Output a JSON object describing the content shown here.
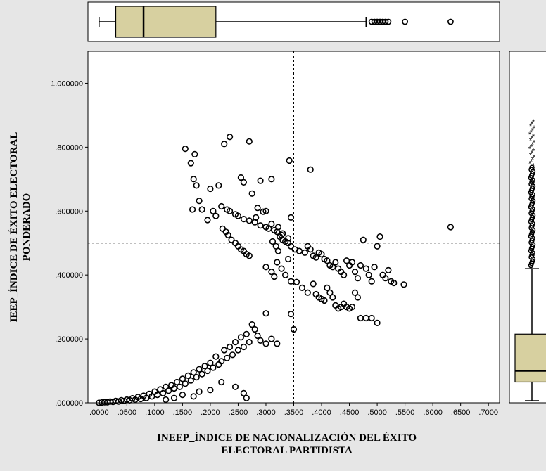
{
  "chart_data": {
    "type": "scatter",
    "title": "",
    "xlabel_lines": [
      "INEEP_ÍNDICE DE NACIONALIZACIÓN DEL ÉXITO",
      "ELECTORAL PARTIDISTA"
    ],
    "ylabel_lines": [
      "IEEP_ÍNDICE DE ÉXITO ELECTORAL",
      "PONDERADO"
    ],
    "xlim": [
      -0.02,
      0.72
    ],
    "ylim": [
      0,
      1.1
    ],
    "x_ticks": [
      0,
      0.05,
      0.1,
      0.15,
      0.2,
      0.25,
      0.3,
      0.35,
      0.4,
      0.45,
      0.5,
      0.55,
      0.6,
      0.65,
      0.7
    ],
    "x_tick_labels": [
      ".0000",
      ".0500",
      ".1000",
      ".1500",
      ".2000",
      ".2500",
      ".3000",
      ".3500",
      ".4000",
      ".4500",
      ".5000",
      ".5500",
      ".6000",
      ".6500",
      ".7000"
    ],
    "y_ticks": [
      0,
      0.2,
      0.4,
      0.6,
      0.8,
      1.0
    ],
    "y_tick_labels": [
      ".000000",
      ".200000",
      ".400000",
      ".600000",
      ".800000",
      "1.000000"
    ],
    "reference_lines": {
      "x": 0.35,
      "y": 0.5
    },
    "marker": "open-circle",
    "colors": {
      "box_fill": "#d7d0a0",
      "plot_bg": "#ffffff",
      "page_bg": "#e6e6e6",
      "ink": "#000000"
    },
    "points": [
      [
        0.155,
        0.795
      ],
      [
        0.172,
        0.778
      ],
      [
        0.165,
        0.75
      ],
      [
        0.17,
        0.7
      ],
      [
        0.175,
        0.68
      ],
      [
        0.18,
        0.632
      ],
      [
        0.168,
        0.605
      ],
      [
        0.185,
        0.605
      ],
      [
        0.2,
        0.67
      ],
      [
        0.215,
        0.68
      ],
      [
        0.225,
        0.81
      ],
      [
        0.235,
        0.832
      ],
      [
        0.27,
        0.818
      ],
      [
        0.255,
        0.705
      ],
      [
        0.26,
        0.69
      ],
      [
        0.275,
        0.655
      ],
      [
        0.29,
        0.695
      ],
      [
        0.31,
        0.7
      ],
      [
        0.342,
        0.758
      ],
      [
        0.38,
        0.73
      ],
      [
        0.632,
        0.55
      ],
      [
        0.195,
        0.572
      ],
      [
        0.21,
        0.585
      ],
      [
        0.205,
        0.6
      ],
      [
        0.22,
        0.615
      ],
      [
        0.23,
        0.605
      ],
      [
        0.235,
        0.6
      ],
      [
        0.245,
        0.59
      ],
      [
        0.25,
        0.585
      ],
      [
        0.26,
        0.575
      ],
      [
        0.27,
        0.57
      ],
      [
        0.28,
        0.565
      ],
      [
        0.29,
        0.555
      ],
      [
        0.295,
        0.598
      ],
      [
        0.3,
        0.55
      ],
      [
        0.305,
        0.545
      ],
      [
        0.31,
        0.56
      ],
      [
        0.315,
        0.54
      ],
      [
        0.32,
        0.535
      ],
      [
        0.325,
        0.52
      ],
      [
        0.33,
        0.51
      ],
      [
        0.335,
        0.505
      ],
      [
        0.34,
        0.515
      ],
      [
        0.222,
        0.545
      ],
      [
        0.228,
        0.535
      ],
      [
        0.232,
        0.525
      ],
      [
        0.238,
        0.51
      ],
      [
        0.245,
        0.5
      ],
      [
        0.25,
        0.49
      ],
      [
        0.255,
        0.48
      ],
      [
        0.26,
        0.475
      ],
      [
        0.265,
        0.465
      ],
      [
        0.27,
        0.46
      ],
      [
        0.282,
        0.58
      ],
      [
        0.285,
        0.61
      ],
      [
        0.3,
        0.6
      ],
      [
        0.312,
        0.505
      ],
      [
        0.318,
        0.49
      ],
      [
        0.322,
        0.475
      ],
      [
        0.328,
        0.525
      ],
      [
        0.345,
        0.58
      ],
      [
        0.352,
        0.48
      ],
      [
        0.36,
        0.475
      ],
      [
        0.37,
        0.47
      ],
      [
        0.375,
        0.49
      ],
      [
        0.38,
        0.48
      ],
      [
        0.385,
        0.46
      ],
      [
        0.39,
        0.455
      ],
      [
        0.395,
        0.47
      ],
      [
        0.4,
        0.465
      ],
      [
        0.405,
        0.45
      ],
      [
        0.41,
        0.445
      ],
      [
        0.415,
        0.43
      ],
      [
        0.42,
        0.425
      ],
      [
        0.425,
        0.44
      ],
      [
        0.43,
        0.42
      ],
      [
        0.435,
        0.41
      ],
      [
        0.44,
        0.4
      ],
      [
        0.445,
        0.445
      ],
      [
        0.45,
        0.43
      ],
      [
        0.455,
        0.44
      ],
      [
        0.46,
        0.41
      ],
      [
        0.465,
        0.39
      ],
      [
        0.47,
        0.43
      ],
      [
        0.475,
        0.51
      ],
      [
        0.48,
        0.42
      ],
      [
        0.485,
        0.4
      ],
      [
        0.49,
        0.38
      ],
      [
        0.495,
        0.425
      ],
      [
        0.5,
        0.49
      ],
      [
        0.505,
        0.52
      ],
      [
        0.51,
        0.4
      ],
      [
        0.515,
        0.39
      ],
      [
        0.52,
        0.415
      ],
      [
        0.525,
        0.38
      ],
      [
        0.53,
        0.375
      ],
      [
        0.548,
        0.37
      ],
      [
        0.3,
        0.425
      ],
      [
        0.31,
        0.41
      ],
      [
        0.315,
        0.395
      ],
      [
        0.32,
        0.44
      ],
      [
        0.328,
        0.42
      ],
      [
        0.335,
        0.4
      ],
      [
        0.34,
        0.45
      ],
      [
        0.345,
        0.38
      ],
      [
        0.355,
        0.378
      ],
      [
        0.365,
        0.36
      ],
      [
        0.375,
        0.345
      ],
      [
        0.385,
        0.372
      ],
      [
        0.39,
        0.34
      ],
      [
        0.395,
        0.33
      ],
      [
        0.4,
        0.325
      ],
      [
        0.405,
        0.32
      ],
      [
        0.41,
        0.36
      ],
      [
        0.415,
        0.345
      ],
      [
        0.42,
        0.33
      ],
      [
        0.425,
        0.305
      ],
      [
        0.43,
        0.295
      ],
      [
        0.435,
        0.3
      ],
      [
        0.44,
        0.31
      ],
      [
        0.445,
        0.3
      ],
      [
        0.45,
        0.295
      ],
      [
        0.455,
        0.3
      ],
      [
        0.46,
        0.345
      ],
      [
        0.465,
        0.33
      ],
      [
        0.47,
        0.265
      ],
      [
        0.48,
        0.265
      ],
      [
        0.49,
        0.265
      ],
      [
        0.5,
        0.25
      ],
      [
        0.345,
        0.278
      ],
      [
        0.35,
        0.23
      ],
      [
        0.3,
        0.28
      ],
      [
        0.31,
        0.2
      ],
      [
        0.32,
        0.185
      ],
      [
        0.3,
        0.185
      ],
      [
        0.29,
        0.195
      ],
      [
        0.285,
        0.21
      ],
      [
        0.28,
        0.23
      ],
      [
        0.275,
        0.245
      ],
      [
        0.27,
        0.19
      ],
      [
        0.265,
        0.215
      ],
      [
        0.26,
        0.175
      ],
      [
        0.255,
        0.205
      ],
      [
        0.25,
        0.165
      ],
      [
        0.245,
        0.19
      ],
      [
        0.24,
        0.15
      ],
      [
        0.235,
        0.175
      ],
      [
        0.23,
        0.14
      ],
      [
        0.225,
        0.165
      ],
      [
        0.22,
        0.13
      ],
      [
        0.215,
        0.12
      ],
      [
        0.21,
        0.145
      ],
      [
        0.205,
        0.11
      ],
      [
        0.2,
        0.125
      ],
      [
        0.195,
        0.1
      ],
      [
        0.19,
        0.115
      ],
      [
        0.185,
        0.09
      ],
      [
        0.18,
        0.105
      ],
      [
        0.175,
        0.08
      ],
      [
        0.17,
        0.095
      ],
      [
        0.165,
        0.07
      ],
      [
        0.16,
        0.085
      ],
      [
        0.155,
        0.06
      ],
      [
        0.15,
        0.075
      ],
      [
        0.145,
        0.05
      ],
      [
        0.14,
        0.065
      ],
      [
        0.135,
        0.045
      ],
      [
        0.13,
        0.055
      ],
      [
        0.125,
        0.038
      ],
      [
        0.12,
        0.05
      ],
      [
        0.115,
        0.03
      ],
      [
        0.11,
        0.042
      ],
      [
        0.105,
        0.025
      ],
      [
        0.1,
        0.035
      ],
      [
        0.095,
        0.02
      ],
      [
        0.09,
        0.028
      ],
      [
        0.085,
        0.015
      ],
      [
        0.08,
        0.022
      ],
      [
        0.075,
        0.012
      ],
      [
        0.07,
        0.018
      ],
      [
        0.065,
        0.01
      ],
      [
        0.06,
        0.014
      ],
      [
        0.055,
        0.008
      ],
      [
        0.05,
        0.01
      ],
      [
        0.045,
        0.006
      ],
      [
        0.04,
        0.008
      ],
      [
        0.035,
        0.004
      ],
      [
        0.03,
        0.006
      ],
      [
        0.025,
        0.003
      ],
      [
        0.02,
        0.004
      ],
      [
        0.015,
        0.002
      ],
      [
        0.01,
        0.002
      ],
      [
        0.005,
        0.001
      ],
      [
        0.0,
        0.0
      ],
      [
        0.17,
        0.02
      ],
      [
        0.2,
        0.04
      ],
      [
        0.22,
        0.065
      ],
      [
        0.265,
        0.015
      ],
      [
        0.26,
        0.03
      ],
      [
        0.245,
        0.05
      ],
      [
        0.18,
        0.035
      ],
      [
        0.15,
        0.025
      ],
      [
        0.135,
        0.015
      ],
      [
        0.12,
        0.01
      ],
      [
        0.34,
        0.5
      ],
      [
        0.345,
        0.49
      ],
      [
        0.33,
        0.53
      ],
      [
        0.322,
        0.55
      ]
    ],
    "top_boxplot": {
      "min": 0.0,
      "q1": 0.03,
      "median": 0.08,
      "q3": 0.21,
      "whisker_high": 0.48,
      "outliers": [
        0.49,
        0.495,
        0.5,
        0.505,
        0.51,
        0.515,
        0.52,
        0.55,
        0.632
      ]
    },
    "right_boxplot": {
      "min": 0.0,
      "q1": 0.065,
      "median": 0.1,
      "q3": 0.215,
      "whisker_high": 0.42,
      "outlier_range": [
        0.43,
        0.88
      ]
    }
  }
}
